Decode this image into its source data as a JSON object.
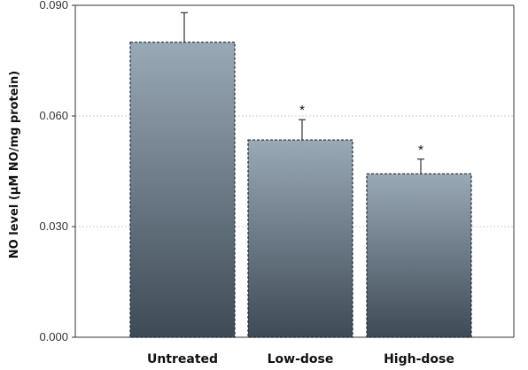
{
  "chart_data": {
    "type": "bar",
    "categories": [
      "Untreated",
      "Low-dose",
      "High-dose"
    ],
    "values": [
      0.08,
      0.0535,
      0.0443
    ],
    "errors": [
      0.008,
      0.0055,
      0.004
    ],
    "significance": [
      "",
      "*",
      "*"
    ],
    "ylabel": "NO level (μM NO/mg protein)",
    "ylim": [
      0,
      0.09
    ],
    "yticks": [
      0,
      0.03,
      0.06,
      0.09
    ],
    "ytick_labels": [
      "0.000",
      "0.030",
      "0.060",
      "0.090"
    ],
    "grid": true,
    "colors": {
      "bar_top": "#9aa9b6",
      "bar_bottom": "#3e4a56",
      "bar_border": "#1e2a36",
      "grid": "#cccccc",
      "axis": "#333333"
    }
  }
}
